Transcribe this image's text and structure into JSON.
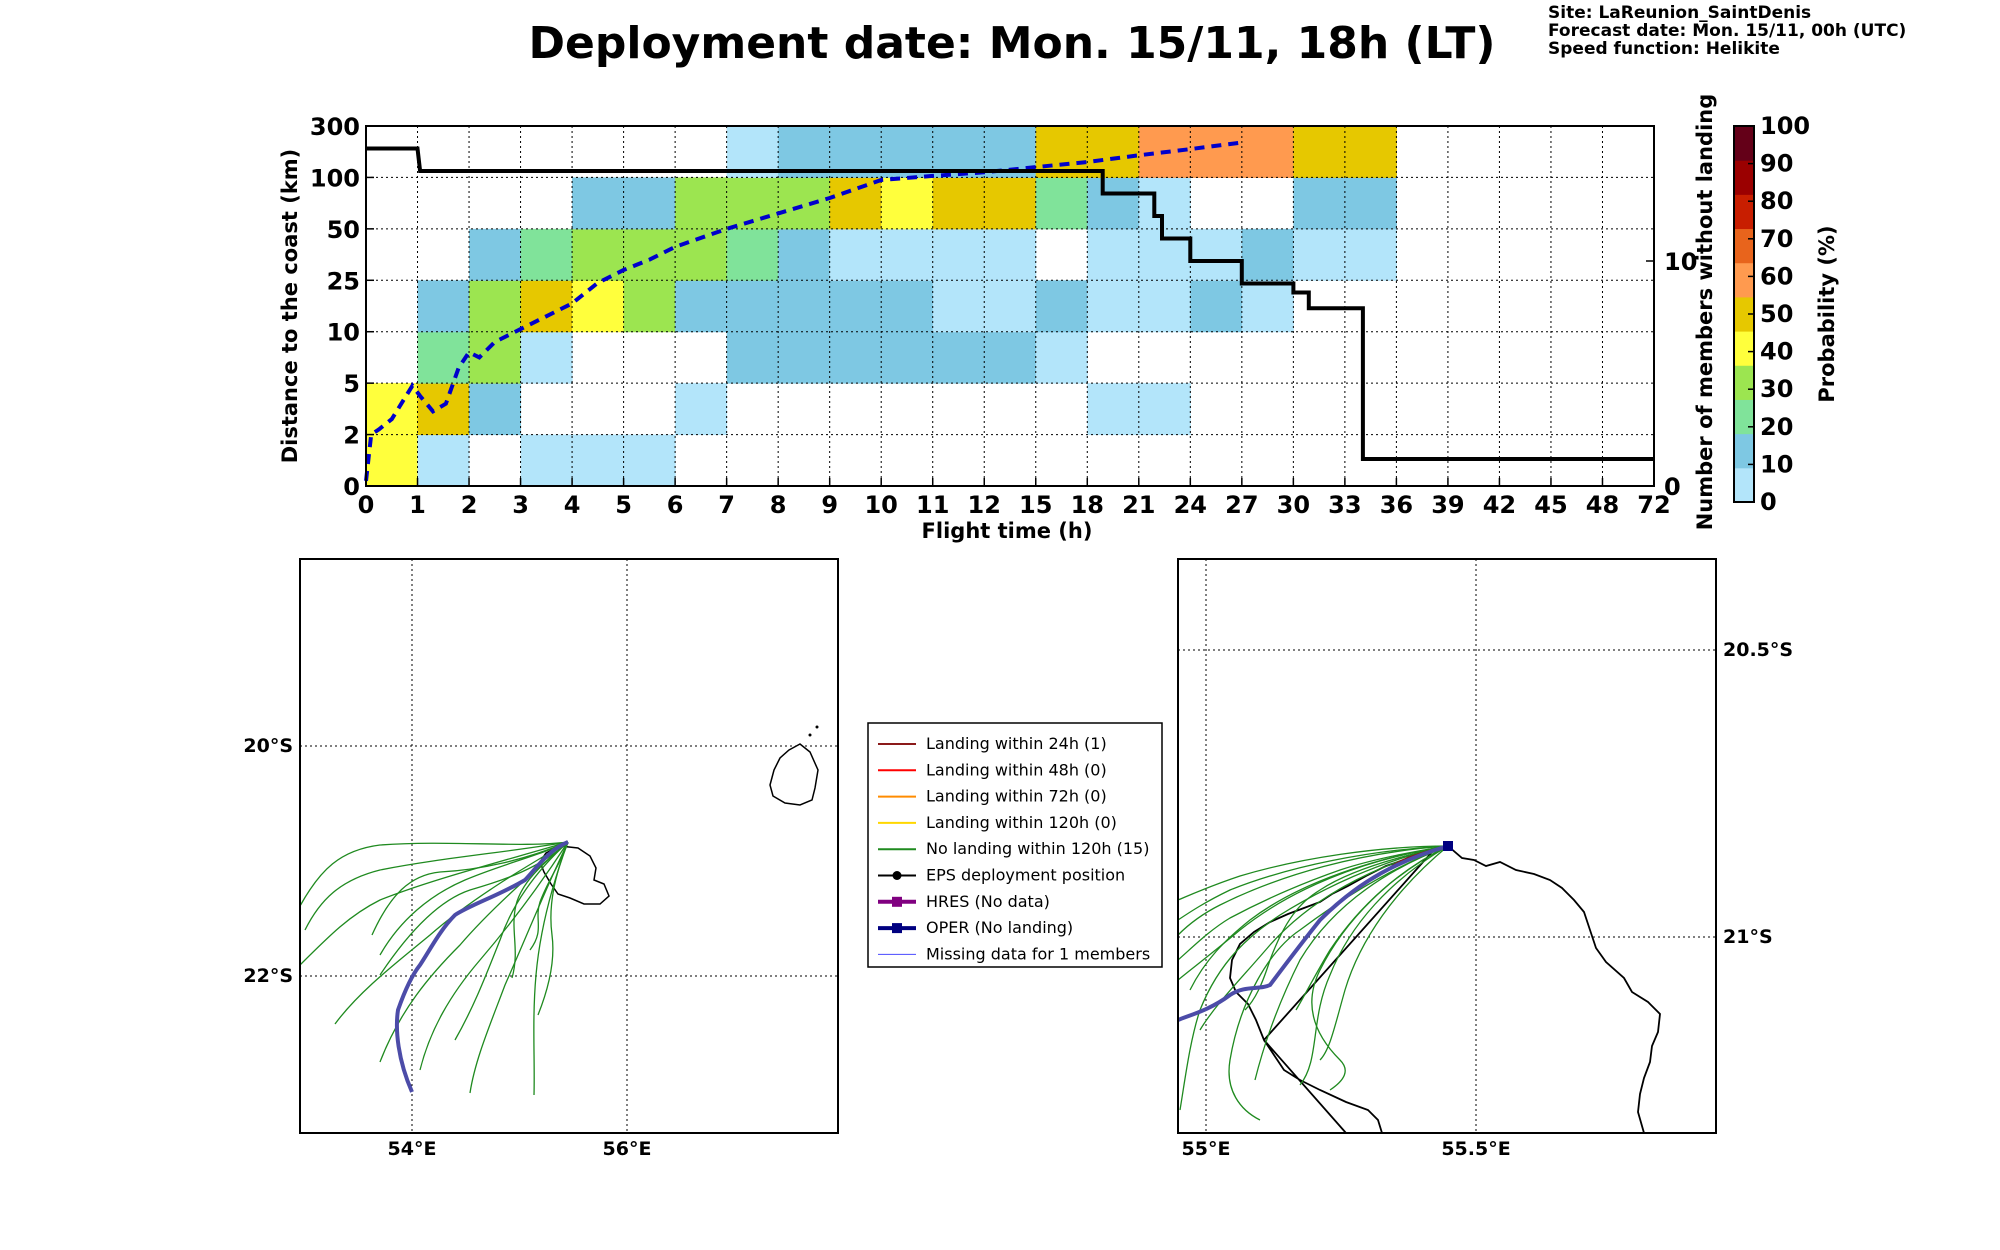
{
  "title": "Deployment date: Mon. 15/11, 18h (LT)",
  "info": {
    "site": "Site: LaReunion_SaintDenis",
    "forecast": "Forecast date: Mon. 15/11, 00h (UTC)",
    "speed": "Speed function: Helikite"
  },
  "chart_data": [
    {
      "type": "heatmap",
      "xlabel": "Flight time (h)",
      "ylabel": "Distance to the coast (km)",
      "ylabel_right": "Number of members without landing",
      "colorbar_label": "Probability (%)",
      "x_ticks": [
        "0",
        "1",
        "2",
        "3",
        "4",
        "5",
        "6",
        "7",
        "8",
        "9",
        "10",
        "11",
        "12",
        "15",
        "18",
        "21",
        "24",
        "27",
        "30",
        "33",
        "36",
        "39",
        "42",
        "45",
        "48",
        "72"
      ],
      "y_ticks": [
        "0",
        "2",
        "5",
        "10",
        "25",
        "50",
        "100",
        "300"
      ],
      "right_ticks": [
        "0",
        "10"
      ],
      "right_ylim": [
        0,
        16
      ],
      "colorbar": {
        "ticks": [
          "0",
          "10",
          "20",
          "30",
          "40",
          "50",
          "60",
          "70",
          "80",
          "90",
          "100"
        ],
        "colors": [
          "#b3e5fa",
          "#7ec8e3",
          "#80e39a",
          "#9ce550",
          "#ffff3c",
          "#e6c800",
          "#ff9a4f",
          "#e8641c",
          "#c81e00",
          "#9b0000",
          "#640018"
        ]
      },
      "cells": [
        {
          "x": 0,
          "y": 0,
          "level": 4
        },
        {
          "x": 1,
          "y": 0,
          "level": 0
        },
        {
          "x": 3,
          "y": 0,
          "level": 0
        },
        {
          "x": 4,
          "y": 0,
          "level": 0
        },
        {
          "x": 5,
          "y": 0,
          "level": 0
        },
        {
          "x": 0,
          "y": 1,
          "level": 4
        },
        {
          "x": 1,
          "y": 1,
          "level": 5
        },
        {
          "x": 2,
          "y": 1,
          "level": 1
        },
        {
          "x": 6,
          "y": 1,
          "level": 0
        },
        {
          "x": 14,
          "y": 1,
          "level": 0
        },
        {
          "x": 15,
          "y": 1,
          "level": 0
        },
        {
          "x": 1,
          "y": 2,
          "level": 2
        },
        {
          "x": 2,
          "y": 2,
          "level": 3
        },
        {
          "x": 3,
          "y": 2,
          "level": 0
        },
        {
          "x": 7,
          "y": 2,
          "level": 1
        },
        {
          "x": 8,
          "y": 2,
          "level": 1
        },
        {
          "x": 9,
          "y": 2,
          "level": 1
        },
        {
          "x": 10,
          "y": 2,
          "level": 1
        },
        {
          "x": 11,
          "y": 2,
          "level": 1
        },
        {
          "x": 12,
          "y": 2,
          "level": 1
        },
        {
          "x": 13,
          "y": 2,
          "level": 0
        },
        {
          "x": 1,
          "y": 3,
          "level": 1
        },
        {
          "x": 2,
          "y": 3,
          "level": 3
        },
        {
          "x": 3,
          "y": 3,
          "level": 5
        },
        {
          "x": 4,
          "y": 3,
          "level": 4
        },
        {
          "x": 5,
          "y": 3,
          "level": 3
        },
        {
          "x": 6,
          "y": 3,
          "level": 1
        },
        {
          "x": 7,
          "y": 3,
          "level": 1
        },
        {
          "x": 8,
          "y": 3,
          "level": 1
        },
        {
          "x": 9,
          "y": 3,
          "level": 1
        },
        {
          "x": 10,
          "y": 3,
          "level": 1
        },
        {
          "x": 11,
          "y": 3,
          "level": 0
        },
        {
          "x": 12,
          "y": 3,
          "level": 0
        },
        {
          "x": 13,
          "y": 3,
          "level": 1
        },
        {
          "x": 14,
          "y": 3,
          "level": 0
        },
        {
          "x": 15,
          "y": 3,
          "level": 0
        },
        {
          "x": 16,
          "y": 3,
          "level": 1
        },
        {
          "x": 17,
          "y": 3,
          "level": 0
        },
        {
          "x": 2,
          "y": 4,
          "level": 1
        },
        {
          "x": 3,
          "y": 4,
          "level": 2
        },
        {
          "x": 4,
          "y": 4,
          "level": 3
        },
        {
          "x": 5,
          "y": 4,
          "level": 3
        },
        {
          "x": 6,
          "y": 4,
          "level": 3
        },
        {
          "x": 7,
          "y": 4,
          "level": 2
        },
        {
          "x": 8,
          "y": 4,
          "level": 1
        },
        {
          "x": 9,
          "y": 4,
          "level": 0
        },
        {
          "x": 10,
          "y": 4,
          "level": 0
        },
        {
          "x": 11,
          "y": 4,
          "level": 0
        },
        {
          "x": 12,
          "y": 4,
          "level": 0
        },
        {
          "x": 14,
          "y": 4,
          "level": 0
        },
        {
          "x": 15,
          "y": 4,
          "level": 0
        },
        {
          "x": 16,
          "y": 4,
          "level": 0
        },
        {
          "x": 17,
          "y": 4,
          "level": 1
        },
        {
          "x": 18,
          "y": 4,
          "level": 0
        },
        {
          "x": 19,
          "y": 4,
          "level": 0
        },
        {
          "x": 4,
          "y": 5,
          "level": 1
        },
        {
          "x": 5,
          "y": 5,
          "level": 1
        },
        {
          "x": 6,
          "y": 5,
          "level": 3
        },
        {
          "x": 7,
          "y": 5,
          "level": 3
        },
        {
          "x": 8,
          "y": 5,
          "level": 3
        },
        {
          "x": 9,
          "y": 5,
          "level": 5
        },
        {
          "x": 10,
          "y": 5,
          "level": 4
        },
        {
          "x": 11,
          "y": 5,
          "level": 5
        },
        {
          "x": 12,
          "y": 5,
          "level": 5
        },
        {
          "x": 13,
          "y": 5,
          "level": 2
        },
        {
          "x": 14,
          "y": 5,
          "level": 1
        },
        {
          "x": 15,
          "y": 5,
          "level": 0
        },
        {
          "x": 18,
          "y": 5,
          "level": 1
        },
        {
          "x": 19,
          "y": 5,
          "level": 1
        },
        {
          "x": 7,
          "y": 6,
          "level": 0
        },
        {
          "x": 8,
          "y": 6,
          "level": 1
        },
        {
          "x": 9,
          "y": 6,
          "level": 1
        },
        {
          "x": 10,
          "y": 6,
          "level": 1
        },
        {
          "x": 11,
          "y": 6,
          "level": 1
        },
        {
          "x": 12,
          "y": 6,
          "level": 1
        },
        {
          "x": 13,
          "y": 6,
          "level": 5
        },
        {
          "x": 14,
          "y": 6,
          "level": 5
        },
        {
          "x": 15,
          "y": 6,
          "level": 6
        },
        {
          "x": 16,
          "y": 6,
          "level": 6
        },
        {
          "x": 17,
          "y": 6,
          "level": 6
        },
        {
          "x": 18,
          "y": 6,
          "level": 5
        },
        {
          "x": 19,
          "y": 6,
          "level": 5
        }
      ],
      "mean_distance": [
        [
          0,
          0.1
        ],
        [
          0.1,
          1.0
        ],
        [
          0.25,
          1.1
        ],
        [
          0.5,
          1.3
        ],
        [
          0.9,
          1.95
        ],
        [
          1.05,
          1.75
        ],
        [
          1.3,
          1.45
        ],
        [
          1.55,
          1.6
        ],
        [
          1.8,
          2.3
        ],
        [
          2.0,
          2.6
        ],
        [
          2.2,
          2.5
        ],
        [
          2.5,
          2.8
        ],
        [
          3.0,
          3.05
        ],
        [
          3.5,
          3.3
        ],
        [
          4.0,
          3.55
        ],
        [
          4.5,
          3.95
        ],
        [
          5.0,
          4.2
        ],
        [
          5.5,
          4.4
        ],
        [
          6.0,
          4.65
        ],
        [
          7.0,
          5.0
        ],
        [
          8.0,
          5.3
        ],
        [
          9.0,
          5.6
        ],
        [
          10.0,
          5.95
        ],
        [
          11.0,
          6.03
        ],
        [
          12.0,
          6.1
        ],
        [
          13.0,
          6.2
        ],
        [
          14.0,
          6.3
        ],
        [
          15.0,
          6.43
        ],
        [
          16.0,
          6.55
        ],
        [
          17.0,
          6.68
        ]
      ],
      "members_without_landing": [
        [
          0,
          15
        ],
        [
          1,
          15
        ],
        [
          1.05,
          14
        ],
        [
          14.3,
          14
        ],
        [
          14.3,
          13
        ],
        [
          15.3,
          13
        ],
        [
          15.3,
          12
        ],
        [
          15.45,
          12
        ],
        [
          15.45,
          11
        ],
        [
          16,
          11
        ],
        [
          16,
          10
        ],
        [
          17,
          10
        ],
        [
          17,
          9
        ],
        [
          18,
          9
        ],
        [
          18,
          8.6
        ],
        [
          18.3,
          8.6
        ],
        [
          18.3,
          7.9
        ],
        [
          19.35,
          7.9
        ],
        [
          19.35,
          1.2
        ],
        [
          25,
          1.2
        ]
      ]
    },
    {
      "type": "map",
      "lat_labels": [
        "20°S",
        "22°S"
      ],
      "lon_labels": [
        "54°E",
        "56°E"
      ]
    },
    {
      "type": "map",
      "lat_labels": [
        "20.5°S",
        "21°S"
      ],
      "lon_labels": [
        "55°E",
        "55.5°E"
      ]
    }
  ],
  "legend": [
    {
      "label": "Landing within 24h (1)",
      "color": "#8b1a1a",
      "marker": "none",
      "width": 2
    },
    {
      "label": "Landing within 48h (0)",
      "color": "#ff0000",
      "marker": "none",
      "width": 2
    },
    {
      "label": "Landing within 72h (0)",
      "color": "#ff8c00",
      "marker": "none",
      "width": 2
    },
    {
      "label": "Landing within 120h (0)",
      "color": "#ffd700",
      "marker": "none",
      "width": 2
    },
    {
      "label": "No landing within 120h (15)",
      "color": "#1f8a1f",
      "marker": "none",
      "width": 2
    },
    {
      "label": "EPS deployment position",
      "color": "#000000",
      "marker": "circle",
      "width": 2
    },
    {
      "label": "HRES (No data)",
      "color": "#800080",
      "marker": "square",
      "width": 4
    },
    {
      "label": "OPER (No landing)",
      "color": "#000080",
      "marker": "square",
      "width": 4
    },
    {
      "label": "Missing data for 1 members",
      "color": "#4a4aff",
      "marker": "none",
      "width": 1
    }
  ]
}
